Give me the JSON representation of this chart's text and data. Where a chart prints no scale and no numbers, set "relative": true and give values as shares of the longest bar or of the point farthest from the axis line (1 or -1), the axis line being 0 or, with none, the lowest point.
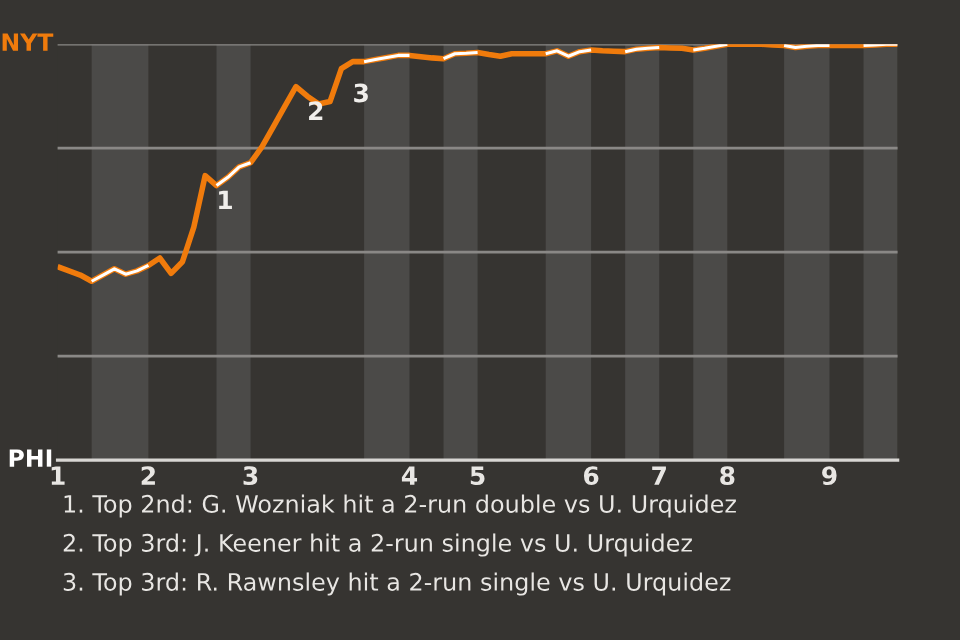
{
  "chart_data": {
    "type": "line",
    "relative": true,
    "categories": [
      "1",
      null,
      null,
      null,
      null,
      null,
      null,
      null,
      "2",
      null,
      null,
      null,
      null,
      null,
      null,
      null,
      null,
      "3",
      null,
      null,
      null,
      null,
      null,
      null,
      null,
      null,
      null,
      null,
      null,
      null,
      null,
      "4",
      null,
      null,
      null,
      null,
      null,
      "5",
      null,
      null,
      null,
      null,
      null,
      null,
      null,
      null,
      null,
      "6",
      null,
      null,
      null,
      null,
      null,
      "7",
      null,
      null,
      null,
      null,
      null,
      "8",
      null,
      null,
      null,
      null,
      null,
      null,
      null,
      null,
      "9",
      null,
      null,
      null,
      null,
      null,
      null
    ],
    "series": [
      {
        "color": "#f07b0c",
        "values": [
          0.465,
          0.455,
          0.445,
          0.43,
          0.445,
          0.46,
          0.447,
          0.455,
          0.468,
          0.486,
          0.449,
          0.477,
          0.56,
          0.684,
          0.66,
          0.68,
          0.705,
          0.715,
          0.753,
          0.801,
          0.85,
          0.898,
          0.875,
          0.856,
          0.862,
          0.941,
          0.958,
          0.958,
          0.963,
          0.968,
          0.973,
          0.973,
          0.97,
          0.967,
          0.965,
          0.977,
          0.978,
          0.98,
          0.975,
          0.971,
          0.977,
          0.977,
          0.977,
          0.977,
          0.984,
          0.971,
          0.982,
          0.986,
          0.984,
          0.983,
          0.982,
          0.988,
          0.99,
          0.992,
          0.991,
          0.99,
          0.986,
          0.99,
          0.995,
          1,
          1,
          1,
          1,
          0.998,
          0.997,
          0.992,
          0.995,
          0.997,
          0.997,
          0.997,
          0.997,
          0.997,
          0.998,
          1,
          1
        ]
      },
      {
        "color": "#ffffff",
        "values": [
          null,
          null,
          null,
          0.43,
          0.445,
          0.46,
          0.447,
          0.455,
          0.468,
          null,
          null,
          null,
          null,
          null,
          0.66,
          0.68,
          0.705,
          0.715,
          null,
          null,
          null,
          null,
          null,
          null,
          null,
          null,
          null,
          0.958,
          0.963,
          0.968,
          0.973,
          0.973,
          null,
          null,
          0.965,
          0.977,
          0.978,
          0.98,
          null,
          null,
          null,
          null,
          null,
          0.977,
          0.984,
          0.971,
          0.982,
          0.986,
          null,
          null,
          0.982,
          0.988,
          0.99,
          0.992,
          null,
          null,
          0.986,
          0.99,
          0.995,
          1,
          null,
          null,
          null,
          null,
          0.997,
          0.992,
          0.995,
          0.997,
          0.997,
          null,
          null,
          0.997,
          0.998,
          1,
          1
        ]
      }
    ],
    "ref_lines": [
      {
        "axis": "y",
        "value": 0.25,
        "color": "#8a8886"
      },
      {
        "axis": "y",
        "value": 0.5,
        "color": "#8a8886"
      },
      {
        "axis": "y",
        "value": 0.75,
        "color": "#8a8886"
      },
      {
        "axis": "y",
        "value": 1,
        "color": "#8a8886"
      }
    ],
    "annotations": [
      "NYT",
      "PHI",
      {
        "text": "1",
        "y": 0.684
      },
      {
        "text": "2",
        "y": 0.898
      },
      {
        "text": "3",
        "y": 0.941
      },
      "1. Top 2nd: G. Wozniak hit a 2-run double vs U. Urquidez",
      "2. Top 3rd: J. Keener hit a 2-run single vs U. Urquidez",
      "3. Top 3rd: R. Rawnsley hit a 2-run single vs U. Urquidez"
    ]
  }
}
